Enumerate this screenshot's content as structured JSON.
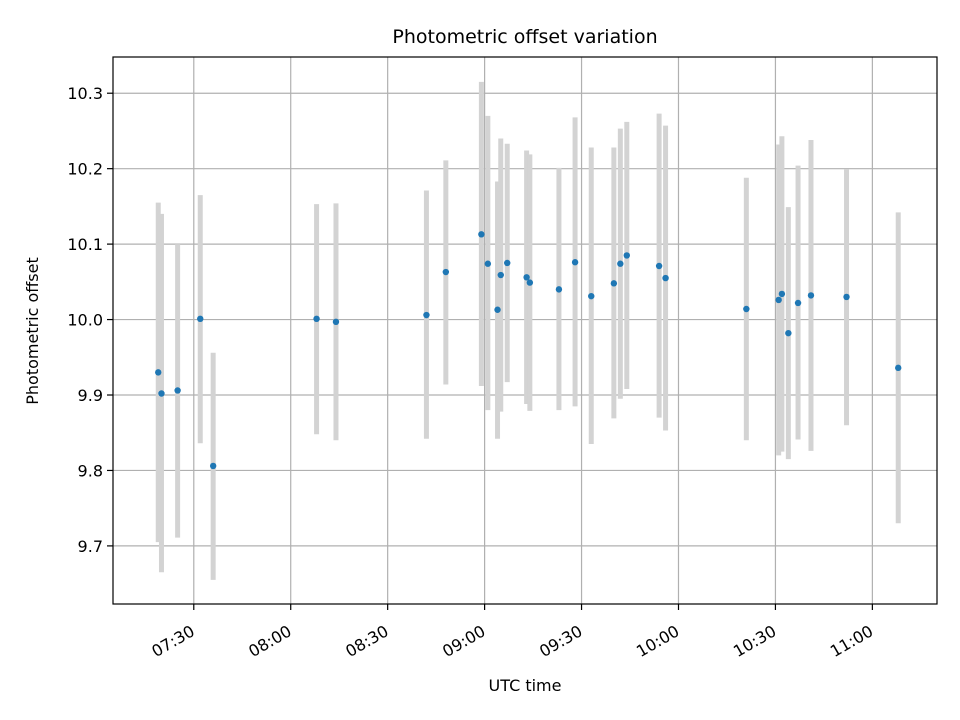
{
  "chart_data": {
    "type": "scatter",
    "title": "Photometric offset variation",
    "xlabel": "UTC time",
    "ylabel": "Photometric offset",
    "grid": true,
    "x_ticks": [
      "07:30",
      "08:00",
      "08:30",
      "09:00",
      "09:30",
      "10:00",
      "10:30",
      "11:00"
    ],
    "y_ticks": [
      "9.7",
      "9.8",
      "9.9",
      "10.0",
      "10.1",
      "10.2",
      "10.3"
    ],
    "xlim": [
      "07:05",
      "11:20"
    ],
    "ylim": [
      9.623,
      10.348
    ],
    "colors": {
      "point": "#1f77b4",
      "errorbar": "#d3d3d3",
      "grid": "#b0b0b0"
    },
    "points": [
      {
        "time": "07:19",
        "value": 9.93,
        "err_low": 9.705,
        "err_high": 10.155
      },
      {
        "time": "07:20",
        "value": 9.902,
        "err_low": 9.665,
        "err_high": 10.14
      },
      {
        "time": "07:25",
        "value": 9.906,
        "err_low": 9.711,
        "err_high": 10.1
      },
      {
        "time": "07:32",
        "value": 10.001,
        "err_low": 9.836,
        "err_high": 10.165
      },
      {
        "time": "07:36",
        "value": 9.806,
        "err_low": 9.655,
        "err_high": 9.956
      },
      {
        "time": "08:08",
        "value": 10.001,
        "err_low": 9.848,
        "err_high": 10.153
      },
      {
        "time": "08:14",
        "value": 9.997,
        "err_low": 9.84,
        "err_high": 10.154
      },
      {
        "time": "08:42",
        "value": 10.006,
        "err_low": 9.842,
        "err_high": 10.171
      },
      {
        "time": "08:48",
        "value": 10.063,
        "err_low": 9.914,
        "err_high": 10.211
      },
      {
        "time": "08:59",
        "value": 10.113,
        "err_low": 9.912,
        "err_high": 10.315
      },
      {
        "time": "09:01",
        "value": 10.074,
        "err_low": 9.88,
        "err_high": 10.27
      },
      {
        "time": "09:04",
        "value": 10.013,
        "err_low": 9.842,
        "err_high": 10.183
      },
      {
        "time": "09:05",
        "value": 10.059,
        "err_low": 9.878,
        "err_high": 10.24
      },
      {
        "time": "09:07",
        "value": 10.075,
        "err_low": 9.917,
        "err_high": 10.233
      },
      {
        "time": "09:13",
        "value": 10.056,
        "err_low": 9.888,
        "err_high": 10.224
      },
      {
        "time": "09:14",
        "value": 10.049,
        "err_low": 9.879,
        "err_high": 10.219
      },
      {
        "time": "09:23",
        "value": 10.04,
        "err_low": 9.88,
        "err_high": 10.201
      },
      {
        "time": "09:28",
        "value": 10.076,
        "err_low": 9.885,
        "err_high": 10.268
      },
      {
        "time": "09:33",
        "value": 10.031,
        "err_low": 9.835,
        "err_high": 10.228
      },
      {
        "time": "09:40",
        "value": 10.048,
        "err_low": 9.869,
        "err_high": 10.228
      },
      {
        "time": "09:42",
        "value": 10.074,
        "err_low": 9.895,
        "err_high": 10.253
      },
      {
        "time": "09:44",
        "value": 10.085,
        "err_low": 9.908,
        "err_high": 10.262
      },
      {
        "time": "09:54",
        "value": 10.071,
        "err_low": 9.87,
        "err_high": 10.273
      },
      {
        "time": "09:56",
        "value": 10.055,
        "err_low": 9.853,
        "err_high": 10.257
      },
      {
        "time": "10:21",
        "value": 10.014,
        "err_low": 9.84,
        "err_high": 10.188
      },
      {
        "time": "10:31",
        "value": 10.026,
        "err_low": 9.82,
        "err_high": 10.232
      },
      {
        "time": "10:32",
        "value": 10.034,
        "err_low": 9.825,
        "err_high": 10.243
      },
      {
        "time": "10:34",
        "value": 9.982,
        "err_low": 9.815,
        "err_high": 10.149
      },
      {
        "time": "10:37",
        "value": 10.022,
        "err_low": 9.841,
        "err_high": 10.204
      },
      {
        "time": "10:41",
        "value": 10.032,
        "err_low": 9.826,
        "err_high": 10.238
      },
      {
        "time": "10:52",
        "value": 10.03,
        "err_low": 9.86,
        "err_high": 10.199
      },
      {
        "time": "11:08",
        "value": 9.936,
        "err_low": 9.73,
        "err_high": 10.142
      }
    ]
  }
}
